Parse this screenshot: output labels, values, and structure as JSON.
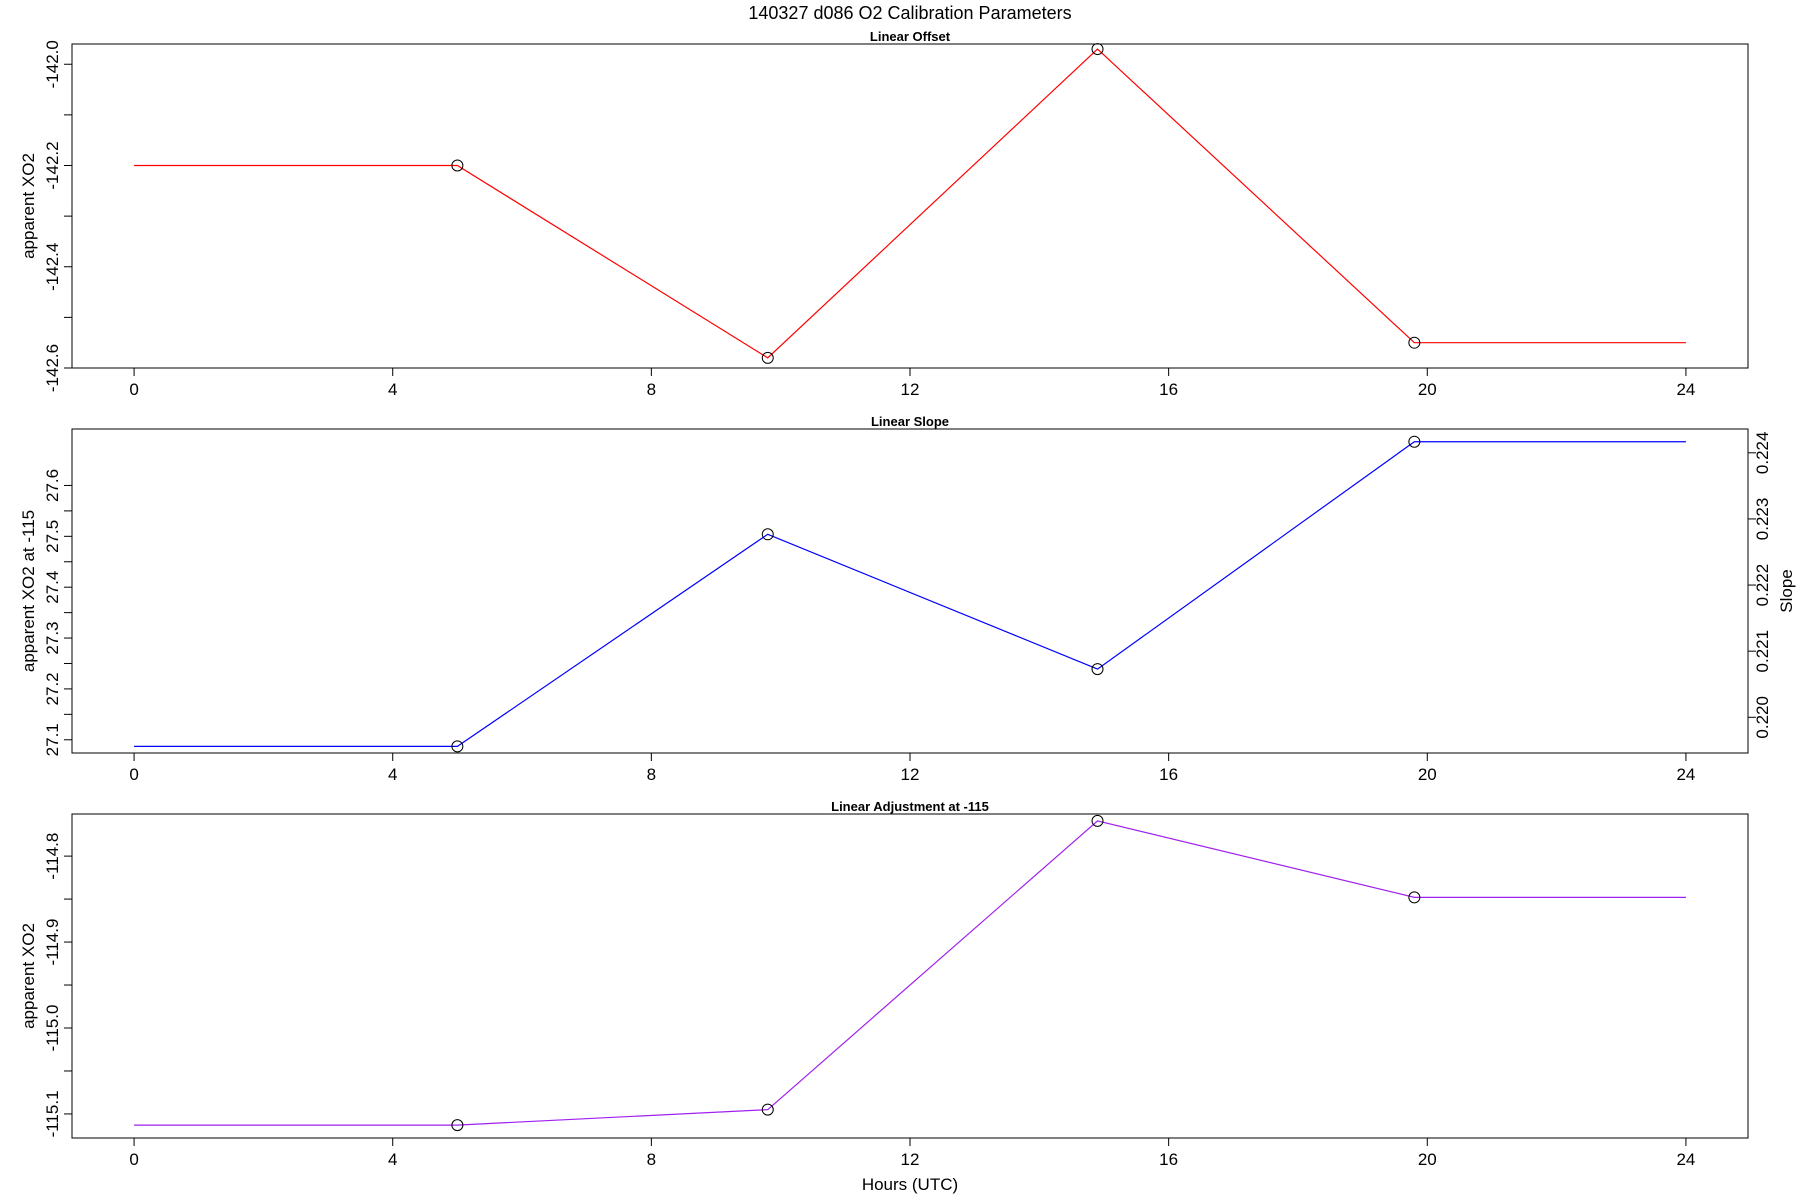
{
  "title": "140327   d086   O2 Calibration Parameters",
  "xlabel": "Hours (UTC)",
  "chart_data": [
    {
      "type": "line",
      "title": "Linear Offset",
      "ylabel": "apparent XO2",
      "x": [
        0,
        5.0,
        9.8,
        14.9,
        19.8,
        24
      ],
      "values": [
        -142.2,
        -142.2,
        -142.58,
        -141.97,
        -142.55,
        -142.55
      ],
      "marker_index": [
        1,
        2,
        3,
        4
      ],
      "color": "#ff0000",
      "xlim": [
        -0.96,
        24.96
      ],
      "ylim": [
        -142.6,
        -141.96
      ],
      "xticks": [
        0,
        4,
        8,
        12,
        16,
        20,
        24
      ],
      "yticks": [
        -142.0,
        -142.2,
        -142.4,
        -142.6
      ],
      "ytick_labels": [
        "-142.0",
        "-142.2",
        "-142.4",
        "-142.6"
      ],
      "legend": "none",
      "grid": false
    },
    {
      "type": "line",
      "title": "Linear Slope",
      "ylabel": "apparent XO2 at -115",
      "y2label": "Slope",
      "x": [
        0,
        5.0,
        9.8,
        14.9,
        19.8,
        24
      ],
      "values": [
        27.087,
        27.087,
        27.504,
        27.239,
        27.686,
        27.686
      ],
      "marker_index": [
        1,
        2,
        3,
        4
      ],
      "color": "#0000ff",
      "xlim": [
        -0.96,
        24.96
      ],
      "ylim": [
        27.074,
        27.711
      ],
      "xticks": [
        0,
        4,
        8,
        12,
        16,
        20,
        24
      ],
      "yticks": [
        27.1,
        27.2,
        27.3,
        27.4,
        27.5,
        27.6
      ],
      "ytick_labels": [
        "27.1",
        "27.2",
        "27.3",
        "27.4",
        "27.5",
        "27.6"
      ],
      "y2lim": [
        0.21946,
        0.22436
      ],
      "y2ticks": [
        0.22,
        0.221,
        0.222,
        0.223,
        0.224
      ],
      "y2tick_labels": [
        "0.220",
        "0.221",
        "0.222",
        "0.223",
        "0.224"
      ],
      "legend": "none",
      "grid": false
    },
    {
      "type": "line",
      "title": "Linear Adjustment at -115",
      "ylabel": "apparent XO2",
      "x": [
        0,
        5.0,
        9.8,
        14.9,
        19.8,
        24
      ],
      "values": [
        -115.113,
        -115.113,
        -115.095,
        -114.759,
        -114.848,
        -114.848
      ],
      "marker_index": [
        1,
        2,
        3,
        4
      ],
      "color": "#a020f0",
      "xlim": [
        -0.96,
        24.96
      ],
      "ylim": [
        -115.128,
        -114.751
      ],
      "xticks": [
        0,
        4,
        8,
        12,
        16,
        20,
        24
      ],
      "yticks": [
        -114.8,
        -114.9,
        -115.0,
        -115.1
      ],
      "ytick_labels": [
        "-114.8",
        "-114.9",
        "-115.0",
        "-115.1"
      ],
      "legend": "none",
      "grid": false
    }
  ]
}
